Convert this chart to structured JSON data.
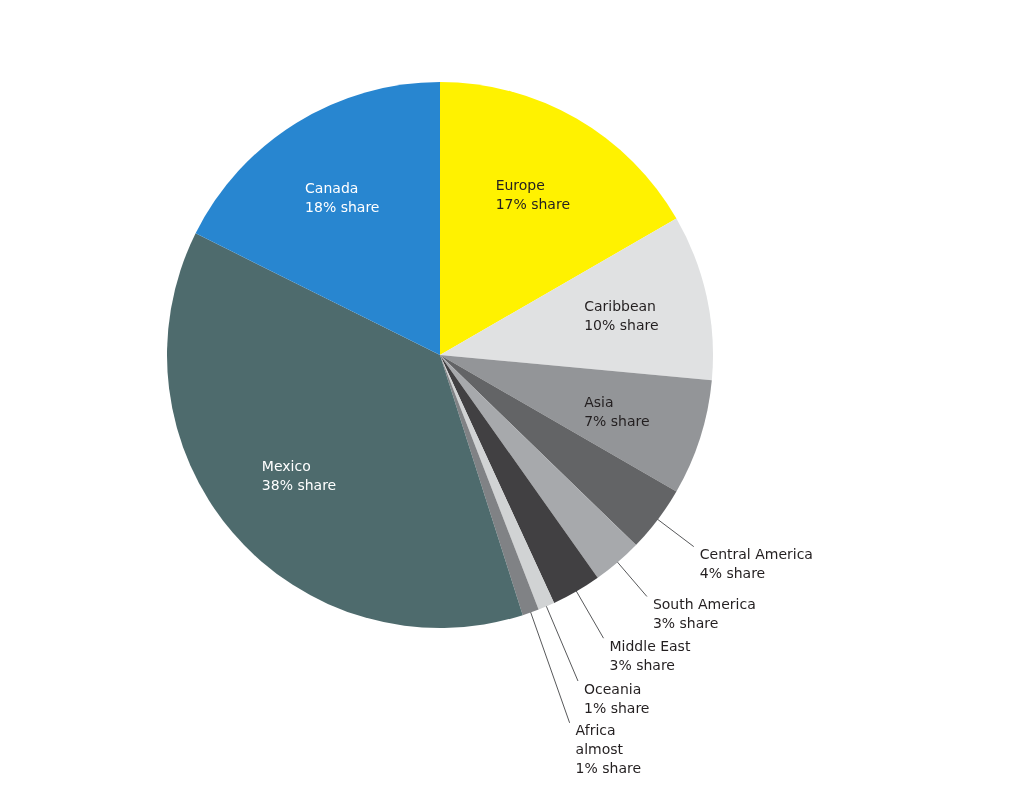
{
  "chart_data": {
    "type": "pie",
    "categories": [
      "Europe",
      "Caribbean",
      "Asia",
      "Central America",
      "South America",
      "Middle East",
      "Oceania",
      "Africa",
      "Mexico",
      "Canada"
    ],
    "values": [
      17,
      10,
      7,
      4,
      3,
      3,
      1,
      1,
      38,
      18
    ],
    "colors": [
      "#fff200",
      "#e0e1e2",
      "#939598",
      "#636466",
      "#a7a9ac",
      "#414042",
      "#d1d3d4",
      "#808285",
      "#4e6b6d",
      "#2886d0"
    ],
    "value_labels": [
      "17% share",
      "10% share",
      "7% share",
      "4% share",
      "3% share",
      "3% share",
      "1% share",
      "almost 1% share",
      "38% share",
      "18% share"
    ]
  }
}
